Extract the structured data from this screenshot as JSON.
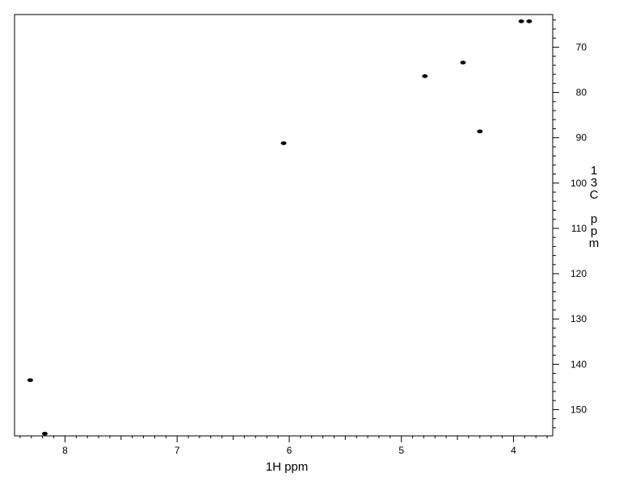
{
  "chart_data": {
    "type": "scatter",
    "title": "",
    "xlabel": "1H ppm",
    "ylabel": "13C ppm",
    "xlim": [
      8.45,
      3.65
    ],
    "ylim": [
      62.8,
      155.8
    ],
    "x_reversed": true,
    "y_reversed": true,
    "x_ticks": [
      8,
      7,
      6,
      5,
      4
    ],
    "y_ticks": [
      70,
      80,
      90,
      100,
      110,
      120,
      130,
      140,
      150
    ],
    "grid": false,
    "legend": "none",
    "marker_color": "#000000",
    "points": [
      {
        "x": 8.31,
        "y": 143.5
      },
      {
        "x": 8.18,
        "y": 155.3
      },
      {
        "x": 6.05,
        "y": 91.2
      },
      {
        "x": 4.79,
        "y": 76.4
      },
      {
        "x": 4.45,
        "y": 73.4
      },
      {
        "x": 4.3,
        "y": 88.6
      },
      {
        "x": 3.93,
        "y": 64.3
      },
      {
        "x": 3.86,
        "y": 64.3
      }
    ]
  }
}
